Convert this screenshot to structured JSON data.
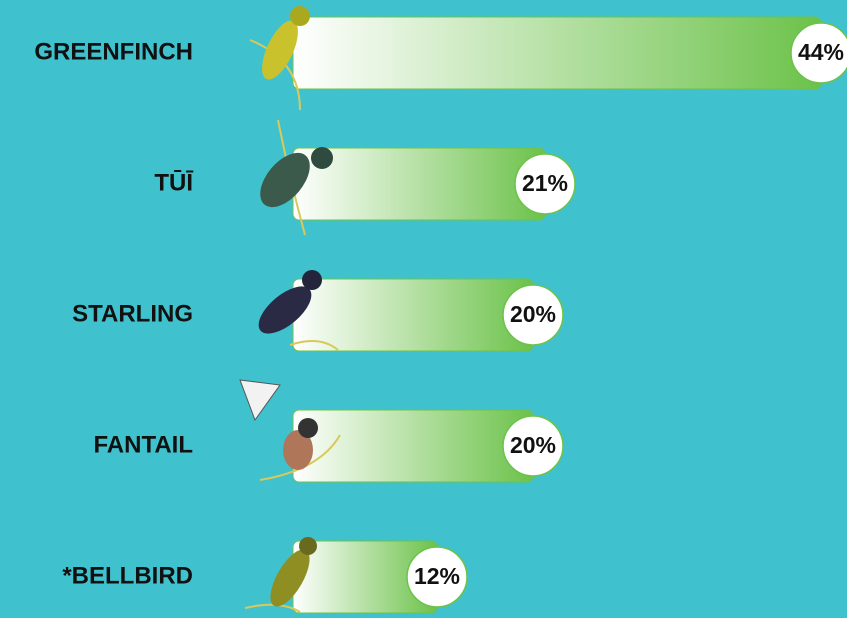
{
  "chart_data": {
    "type": "bar",
    "orientation": "horizontal",
    "categories": [
      "GREENFINCH",
      "TŪĪ",
      "STARLING",
      "FANTAIL",
      "*BELLBIRD"
    ],
    "values": [
      44,
      21,
      20,
      20,
      12
    ],
    "value_labels": [
      "44%",
      "21%",
      "20%",
      "20%",
      "12%"
    ],
    "color": "#6cc24a"
  }
}
